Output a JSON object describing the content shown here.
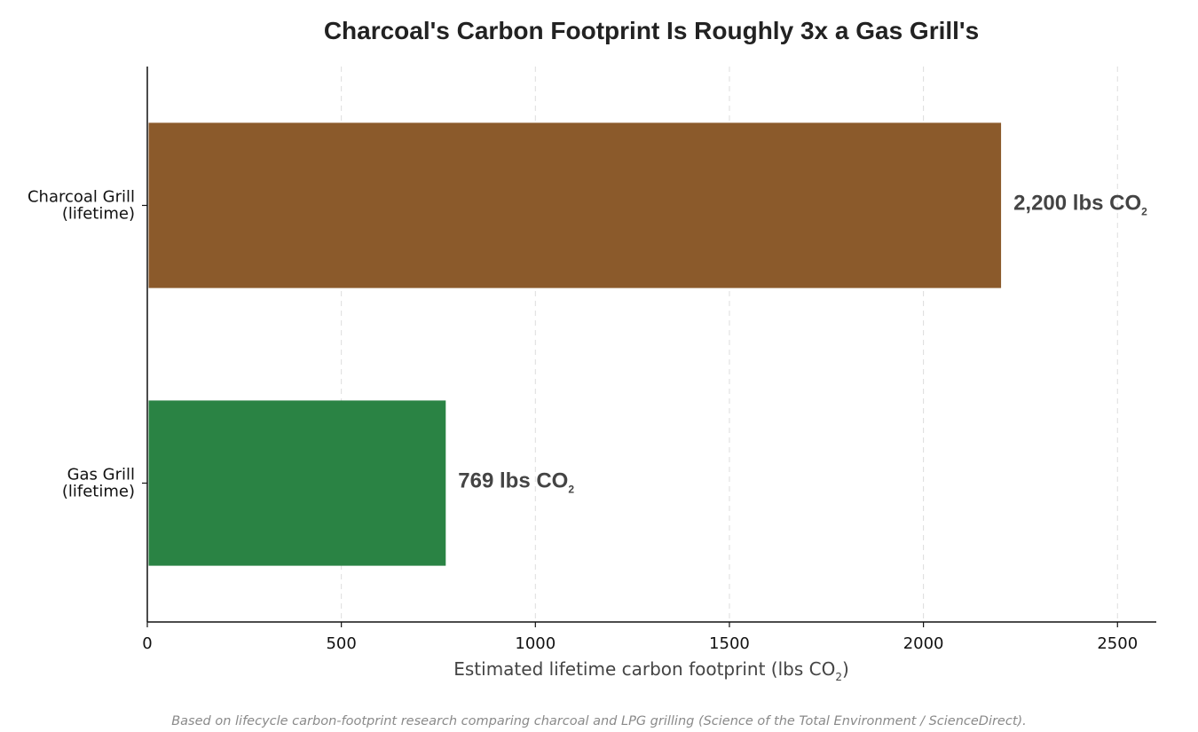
{
  "chart_data": {
    "type": "bar",
    "orientation": "horizontal",
    "title": "Charcoal's Carbon Footprint Is Roughly 3x a Gas Grill's",
    "categories": [
      {
        "line1": "Charcoal Grill",
        "line2": "(lifetime)"
      },
      {
        "line1": "Gas Grill",
        "line2": "(lifetime)"
      }
    ],
    "values": [
      2200,
      769
    ],
    "colors": [
      "#8B5A2B",
      "#2A8344"
    ],
    "value_labels": [
      {
        "main": "2,200 lbs CO",
        "sub": "2"
      },
      {
        "main": "769 lbs CO",
        "sub": "2"
      }
    ],
    "xlabel": {
      "main": "Estimated lifetime carbon footprint (lbs CO",
      "sub": "2",
      "tail": ")"
    },
    "xlim": [
      0,
      2600
    ],
    "xticks": [
      0,
      500,
      1000,
      1500,
      2000,
      2500
    ],
    "grid": "vertical dashed",
    "footnote": "Based on lifecycle carbon-footprint research comparing charcoal and LPG grilling (Science of the Total Environment / ScienceDirect)."
  }
}
